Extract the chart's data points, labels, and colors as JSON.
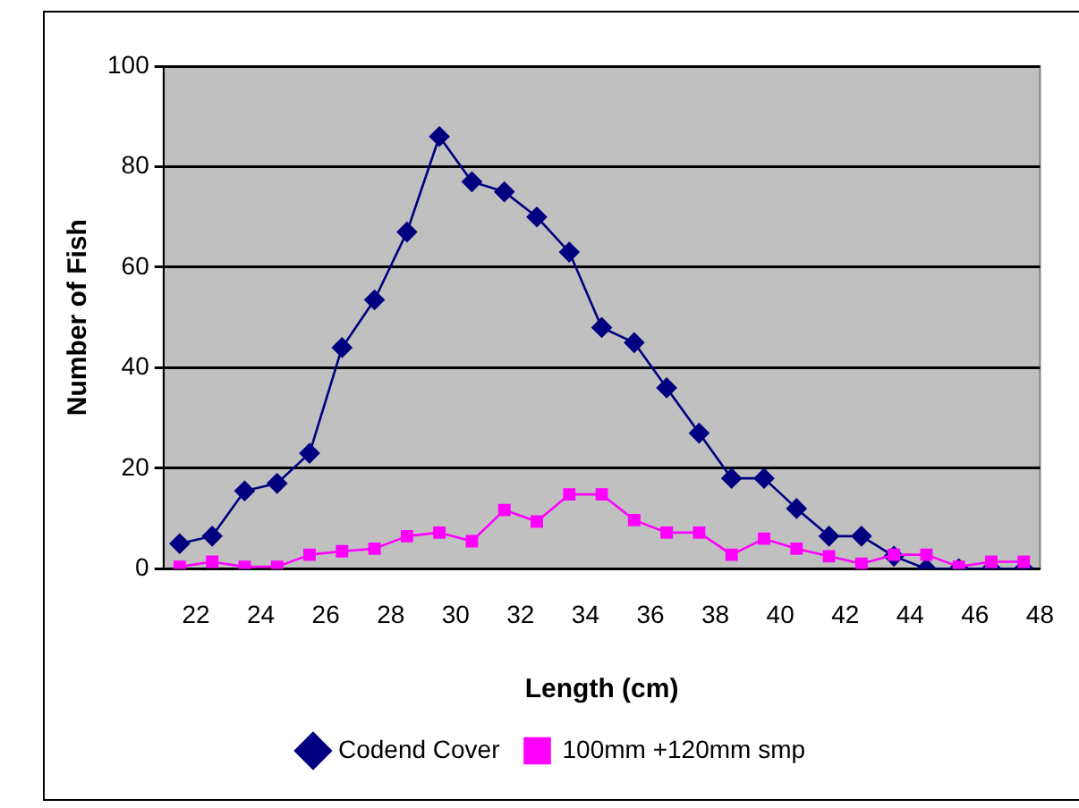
{
  "chart_data": {
    "type": "line",
    "xlabel": "Length (cm)",
    "ylabel": "Number of Fish",
    "x": [
      21.5,
      22.5,
      23.5,
      24.5,
      25.5,
      26.5,
      27.5,
      28.5,
      29.5,
      30.5,
      31.5,
      32.5,
      33.5,
      34.5,
      35.5,
      36.5,
      37.5,
      38.5,
      39.5,
      40.5,
      41.5,
      42.5,
      43.5,
      44.5,
      45.5,
      46.5,
      47.5
    ],
    "xlim": [
      21,
      48
    ],
    "xticks": [
      22,
      24,
      26,
      28,
      30,
      32,
      34,
      36,
      38,
      40,
      42,
      44,
      46,
      48
    ],
    "ylim": [
      0,
      100
    ],
    "yticks": [
      0,
      20,
      40,
      60,
      80,
      100
    ],
    "grid": "y",
    "legend": "bottom",
    "series": [
      {
        "name": "Codend Cover",
        "color": "#000080",
        "marker": "diamond",
        "values": [
          5,
          6.5,
          15.5,
          17,
          23,
          44,
          53.5,
          67,
          86,
          77,
          75,
          70,
          63,
          48,
          45,
          36,
          27,
          18,
          18,
          12,
          6.5,
          6.5,
          2.5,
          0,
          0,
          0,
          0
        ]
      },
      {
        "name": "100mm +120mm smp",
        "color": "#ff00ff",
        "marker": "square",
        "values": [
          0.4,
          1.4,
          0.4,
          0.4,
          2.8,
          3.5,
          4,
          6.5,
          7.2,
          5.5,
          11.7,
          9.4,
          14.8,
          14.8,
          9.7,
          7.2,
          7.2,
          2.8,
          6,
          4,
          2.5,
          1,
          2.8,
          2.8,
          0.4,
          1.4,
          1.4
        ]
      }
    ]
  }
}
